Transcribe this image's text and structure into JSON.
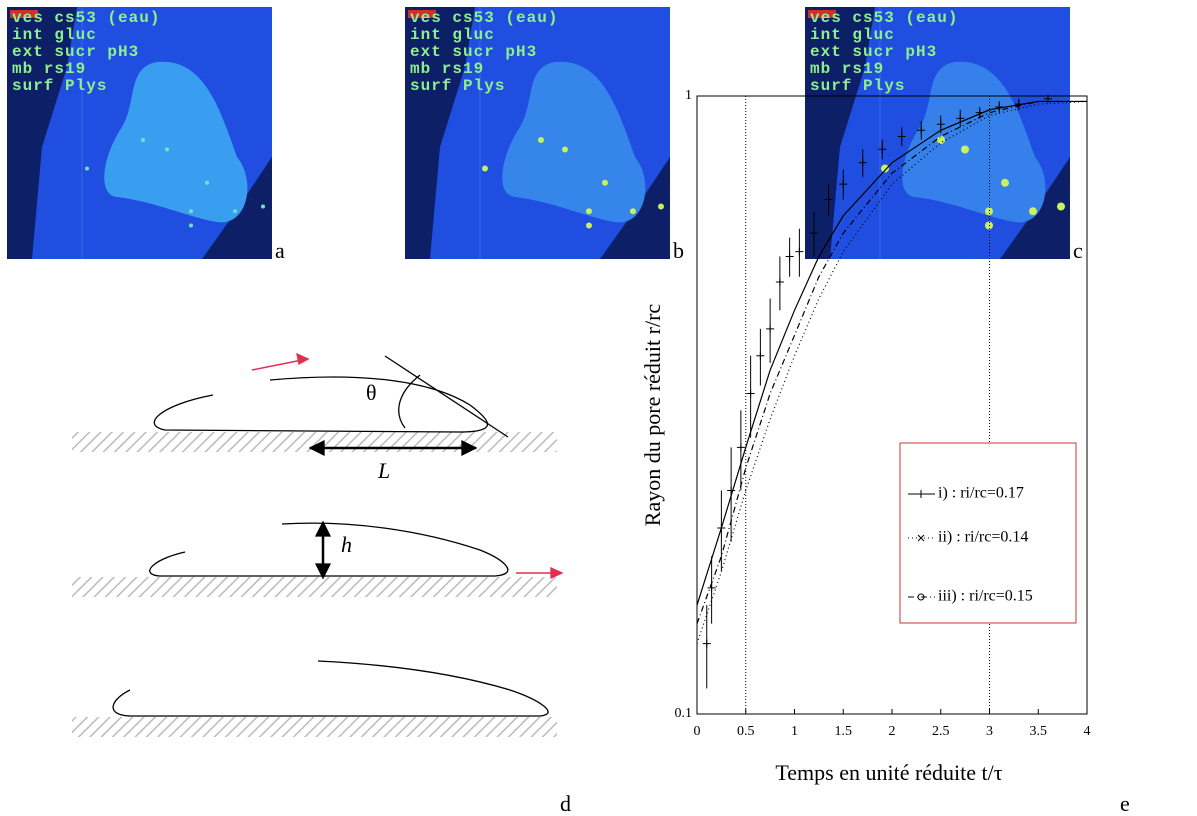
{
  "images": [
    {
      "label": "a",
      "overlay": [
        "ves cs53 (eau)",
        "int gluc",
        "ext sucr pH3",
        "mb rs19",
        "surf Plys"
      ]
    },
    {
      "label": "b",
      "overlay": [
        "ves cs53 (eau)",
        "int gluc",
        "ext sucr pH3",
        "mb rs19",
        "surf Plys"
      ]
    },
    {
      "label": "c",
      "overlay": [
        "ves cs53 (eau)",
        "int gluc",
        "ext sucr pH3",
        "mb rs19",
        "surf Plys"
      ]
    }
  ],
  "diagram": {
    "label": "d",
    "angle": "θ",
    "length": "L",
    "height": "h"
  },
  "chart_data": {
    "type": "line",
    "label": "e",
    "x_label": "Temps en unité réduite t/τ",
    "y_label": "Rayon du  pore réduit r/rc",
    "xlim": [
      0,
      4
    ],
    "ylim": [
      0.1,
      1
    ],
    "log_y": true,
    "xticks": [
      0,
      0.5,
      1,
      1.5,
      2,
      2.5,
      3,
      3.5,
      4
    ],
    "yticks": [
      0.1,
      1
    ],
    "vlines": [
      0.5,
      3
    ],
    "x": [
      0,
      0.25,
      0.5,
      0.75,
      1,
      1.25,
      1.5,
      2,
      2.5,
      3,
      3.5,
      4
    ],
    "series": [
      {
        "name": "i) : ri/rc=0.17",
        "color": "#000000",
        "dash": "solid",
        "marker": "+",
        "values": [
          0.15,
          0.2,
          0.27,
          0.36,
          0.45,
          0.55,
          0.64,
          0.78,
          0.88,
          0.95,
          0.98,
          0.98
        ]
      },
      {
        "name": "ii) : ri/rc=0.14",
        "color": "#000000",
        "dash": "dotted",
        "marker": "x",
        "values": [
          0.13,
          0.17,
          0.23,
          0.3,
          0.38,
          0.47,
          0.56,
          0.72,
          0.84,
          0.93,
          0.97,
          0.98
        ]
      },
      {
        "name": "iii) : ri/rc=0.15",
        "color": "#000000",
        "dash": "dashdot",
        "marker": "o",
        "values": [
          0.14,
          0.18,
          0.25,
          0.33,
          0.41,
          0.51,
          0.6,
          0.75,
          0.86,
          0.94,
          0.98,
          0.98
        ]
      }
    ],
    "points": {
      "x": [
        0.1,
        0.15,
        0.25,
        0.35,
        0.45,
        0.55,
        0.65,
        0.75,
        0.85,
        0.95,
        1.05,
        1.2,
        1.35,
        1.5,
        1.7,
        1.9,
        2.1,
        2.3,
        2.5,
        2.7,
        2.9,
        3.1,
        3.3,
        3.6
      ],
      "values": [
        0.13,
        0.16,
        0.2,
        0.23,
        0.27,
        0.33,
        0.38,
        0.42,
        0.5,
        0.55,
        0.56,
        0.6,
        0.68,
        0.72,
        0.78,
        0.82,
        0.86,
        0.88,
        0.9,
        0.92,
        0.94,
        0.96,
        0.97,
        0.99
      ],
      "errors": [
        0.02,
        0.02,
        0.03,
        0.04,
        0.04,
        0.05,
        0.04,
        0.05,
        0.05,
        0.04,
        0.05,
        0.05,
        0.04,
        0.04,
        0.04,
        0.03,
        0.03,
        0.03,
        0.03,
        0.03,
        0.02,
        0.02,
        0.02,
        0.01
      ]
    },
    "legend_border": "#c0392b"
  }
}
